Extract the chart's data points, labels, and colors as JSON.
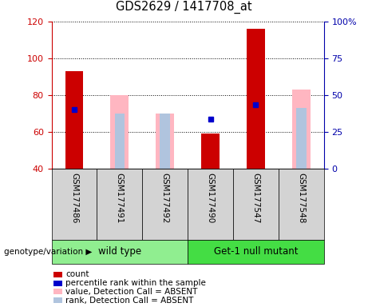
{
  "title": "GDS2629 / 1417708_at",
  "samples": [
    "GSM177486",
    "GSM177491",
    "GSM177492",
    "GSM177490",
    "GSM177547",
    "GSM177548"
  ],
  "count_bars": [
    93,
    null,
    null,
    59,
    116,
    null
  ],
  "absent_value_bars": [
    null,
    80,
    70,
    null,
    null,
    83
  ],
  "absent_rank_bars": [
    null,
    70,
    70,
    null,
    null,
    73
  ],
  "percentile_dots": [
    72,
    null,
    null,
    67,
    75,
    null
  ],
  "ylim": [
    40,
    120
  ],
  "yticks": [
    40,
    60,
    80,
    100,
    120
  ],
  "y2lim": [
    0,
    100
  ],
  "y2ticks": [
    0,
    25,
    50,
    75,
    100
  ],
  "y2labels": [
    "0",
    "25",
    "50",
    "75",
    "100%"
  ],
  "count_color": "#CC0000",
  "absent_value_color": "#FFB6C1",
  "absent_rank_color": "#B0C4DE",
  "percentile_color": "#0000CC",
  "left_tick_color": "#CC0000",
  "right_tick_color": "#0000AA",
  "bar_width": 0.4,
  "wt_color": "#90EE90",
  "gm_color": "#44DD44",
  "sample_bg": "#D3D3D3",
  "legend_items": [
    {
      "label": "count",
      "color": "#CC0000"
    },
    {
      "label": "percentile rank within the sample",
      "color": "#0000CC"
    },
    {
      "label": "value, Detection Call = ABSENT",
      "color": "#FFB6C1"
    },
    {
      "label": "rank, Detection Call = ABSENT",
      "color": "#B0C4DE"
    }
  ]
}
